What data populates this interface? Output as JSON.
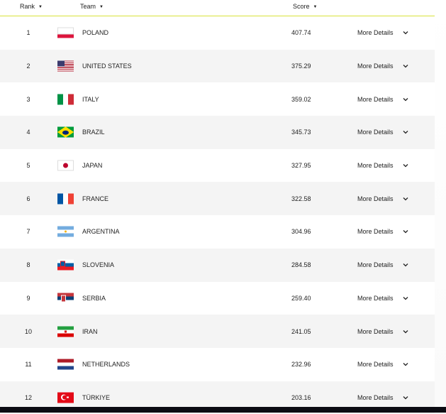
{
  "header": {
    "rank": "Rank",
    "team": "Team",
    "score": "Score",
    "sort_icon": "▼"
  },
  "rows": [
    {
      "rank": "1",
      "team": "POLAND",
      "score": "407.74",
      "flag": "poland",
      "more": "More Details"
    },
    {
      "rank": "2",
      "team": "UNITED STATES",
      "score": "375.29",
      "flag": "usa",
      "more": "More Details"
    },
    {
      "rank": "3",
      "team": "ITALY",
      "score": "359.02",
      "flag": "italy",
      "more": "More Details"
    },
    {
      "rank": "4",
      "team": "BRAZIL",
      "score": "345.73",
      "flag": "brazil",
      "more": "More Details"
    },
    {
      "rank": "5",
      "team": "JAPAN",
      "score": "327.95",
      "flag": "japan",
      "more": "More Details"
    },
    {
      "rank": "6",
      "team": "FRANCE",
      "score": "322.58",
      "flag": "france",
      "more": "More Details"
    },
    {
      "rank": "7",
      "team": "ARGENTINA",
      "score": "304.96",
      "flag": "argentina",
      "more": "More Details"
    },
    {
      "rank": "8",
      "team": "SLOVENIA",
      "score": "284.58",
      "flag": "slovenia",
      "more": "More Details"
    },
    {
      "rank": "9",
      "team": "SERBIA",
      "score": "259.40",
      "flag": "serbia",
      "more": "More Details"
    },
    {
      "rank": "10",
      "team": "IRAN",
      "score": "241.05",
      "flag": "iran",
      "more": "More Details"
    },
    {
      "rank": "11",
      "team": "NETHERLANDS",
      "score": "232.96",
      "flag": "netherlands",
      "more": "More Details"
    },
    {
      "rank": "12",
      "team": "TÜRKIYE",
      "score": "203.16",
      "flag": "turkey",
      "more": "More Details"
    }
  ],
  "colors": {
    "accent_line": "#d8e33a",
    "alt_row": "#f4f4f4"
  }
}
